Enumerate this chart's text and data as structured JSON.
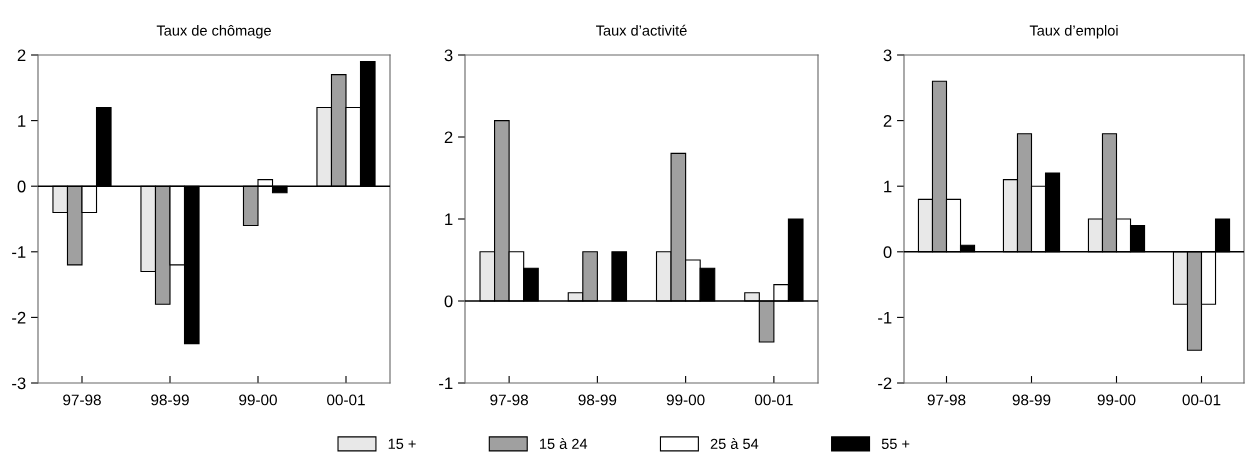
{
  "chart_data": [
    {
      "type": "bar",
      "title": "Taux de chômage",
      "categories": [
        "97-98",
        "98-99",
        "99-00",
        "00-01"
      ],
      "legend": "bottom",
      "ylim": [
        -3,
        2
      ],
      "yticks": [
        -3,
        -2,
        -1,
        0,
        1,
        2
      ],
      "series": [
        {
          "name": "15 +",
          "color": "#e8e8e8",
          "values": [
            -0.4,
            -1.3,
            0,
            1.2
          ]
        },
        {
          "name": "15 à 24",
          "color": "#a0a0a0",
          "values": [
            -1.2,
            -1.8,
            -0.6,
            1.7
          ]
        },
        {
          "name": "25 à 54",
          "color": "#ffffff",
          "values": [
            -0.4,
            -1.2,
            0.1,
            1.2
          ]
        },
        {
          "name": "55 +",
          "color": "#000000",
          "values": [
            1.2,
            -2.4,
            -0.1,
            1.9
          ]
        }
      ]
    },
    {
      "type": "bar",
      "title": "Taux d’activité",
      "categories": [
        "97-98",
        "98-99",
        "99-00",
        "00-01"
      ],
      "ylim": [
        -1,
        3
      ],
      "yticks": [
        -1,
        0,
        1,
        2,
        3
      ],
      "series": [
        {
          "color": "#e8e8e8",
          "values": [
            0.6,
            0.1,
            0.6,
            0.1
          ]
        },
        {
          "color": "#a0a0a0",
          "values": [
            2.2,
            0.6,
            1.8,
            -0.5
          ]
        },
        {
          "color": "#ffffff",
          "values": [
            0.6,
            0,
            0.5,
            0.2
          ]
        },
        {
          "color": "#000000",
          "values": [
            0.4,
            0.6,
            0.4,
            1.0
          ]
        }
      ]
    },
    {
      "type": "bar",
      "title": "Taux d’emploi",
      "categories": [
        "97-98",
        "98-99",
        "99-00",
        "00-01"
      ],
      "ylim": [
        -2,
        3
      ],
      "yticks": [
        -2,
        -1,
        0,
        1,
        2,
        3
      ],
      "series": [
        {
          "color": "#e8e8e8",
          "values": [
            0.8,
            1.1,
            0.5,
            -0.8
          ]
        },
        {
          "color": "#a0a0a0",
          "values": [
            2.6,
            1.8,
            1.8,
            -1.5
          ]
        },
        {
          "color": "#ffffff",
          "values": [
            0.8,
            1.0,
            0.5,
            -0.8
          ]
        },
        {
          "color": "#000000",
          "values": [
            0.1,
            1.2,
            0.4,
            0.5
          ]
        }
      ]
    }
  ]
}
